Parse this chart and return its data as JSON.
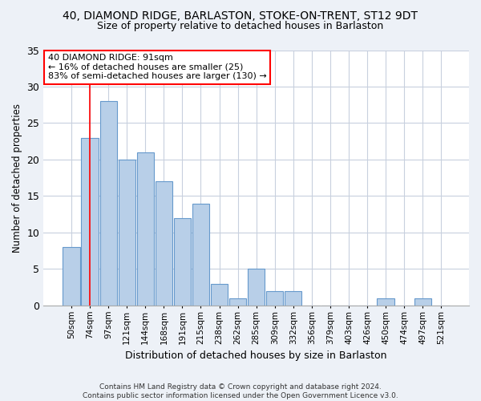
{
  "title_line1": "40, DIAMOND RIDGE, BARLASTON, STOKE-ON-TRENT, ST12 9DT",
  "title_line2": "Size of property relative to detached houses in Barlaston",
  "xlabel": "Distribution of detached houses by size in Barlaston",
  "ylabel": "Number of detached properties",
  "categories": [
    "50sqm",
    "74sqm",
    "97sqm",
    "121sqm",
    "144sqm",
    "168sqm",
    "191sqm",
    "215sqm",
    "238sqm",
    "262sqm",
    "285sqm",
    "309sqm",
    "332sqm",
    "356sqm",
    "379sqm",
    "403sqm",
    "426sqm",
    "450sqm",
    "474sqm",
    "497sqm",
    "521sqm"
  ],
  "values": [
    8,
    23,
    28,
    20,
    21,
    17,
    12,
    14,
    3,
    1,
    5,
    2,
    2,
    0,
    0,
    0,
    0,
    1,
    0,
    1,
    0
  ],
  "bar_color": "#b8cfe8",
  "bar_edge_color": "#6699cc",
  "ylim": [
    0,
    35
  ],
  "yticks": [
    0,
    5,
    10,
    15,
    20,
    25,
    30,
    35
  ],
  "annotation_text_line1": "40 DIAMOND RIDGE: 91sqm",
  "annotation_text_line2": "← 16% of detached houses are smaller (25)",
  "annotation_text_line3": "83% of semi-detached houses are larger (130) →",
  "red_line_x": 1.0,
  "footnote": "Contains HM Land Registry data © Crown copyright and database right 2024.\nContains public sector information licensed under the Open Government Licence v3.0.",
  "bg_color": "#edf1f7",
  "plot_bg_color": "#ffffff",
  "grid_color": "#c8d0de"
}
